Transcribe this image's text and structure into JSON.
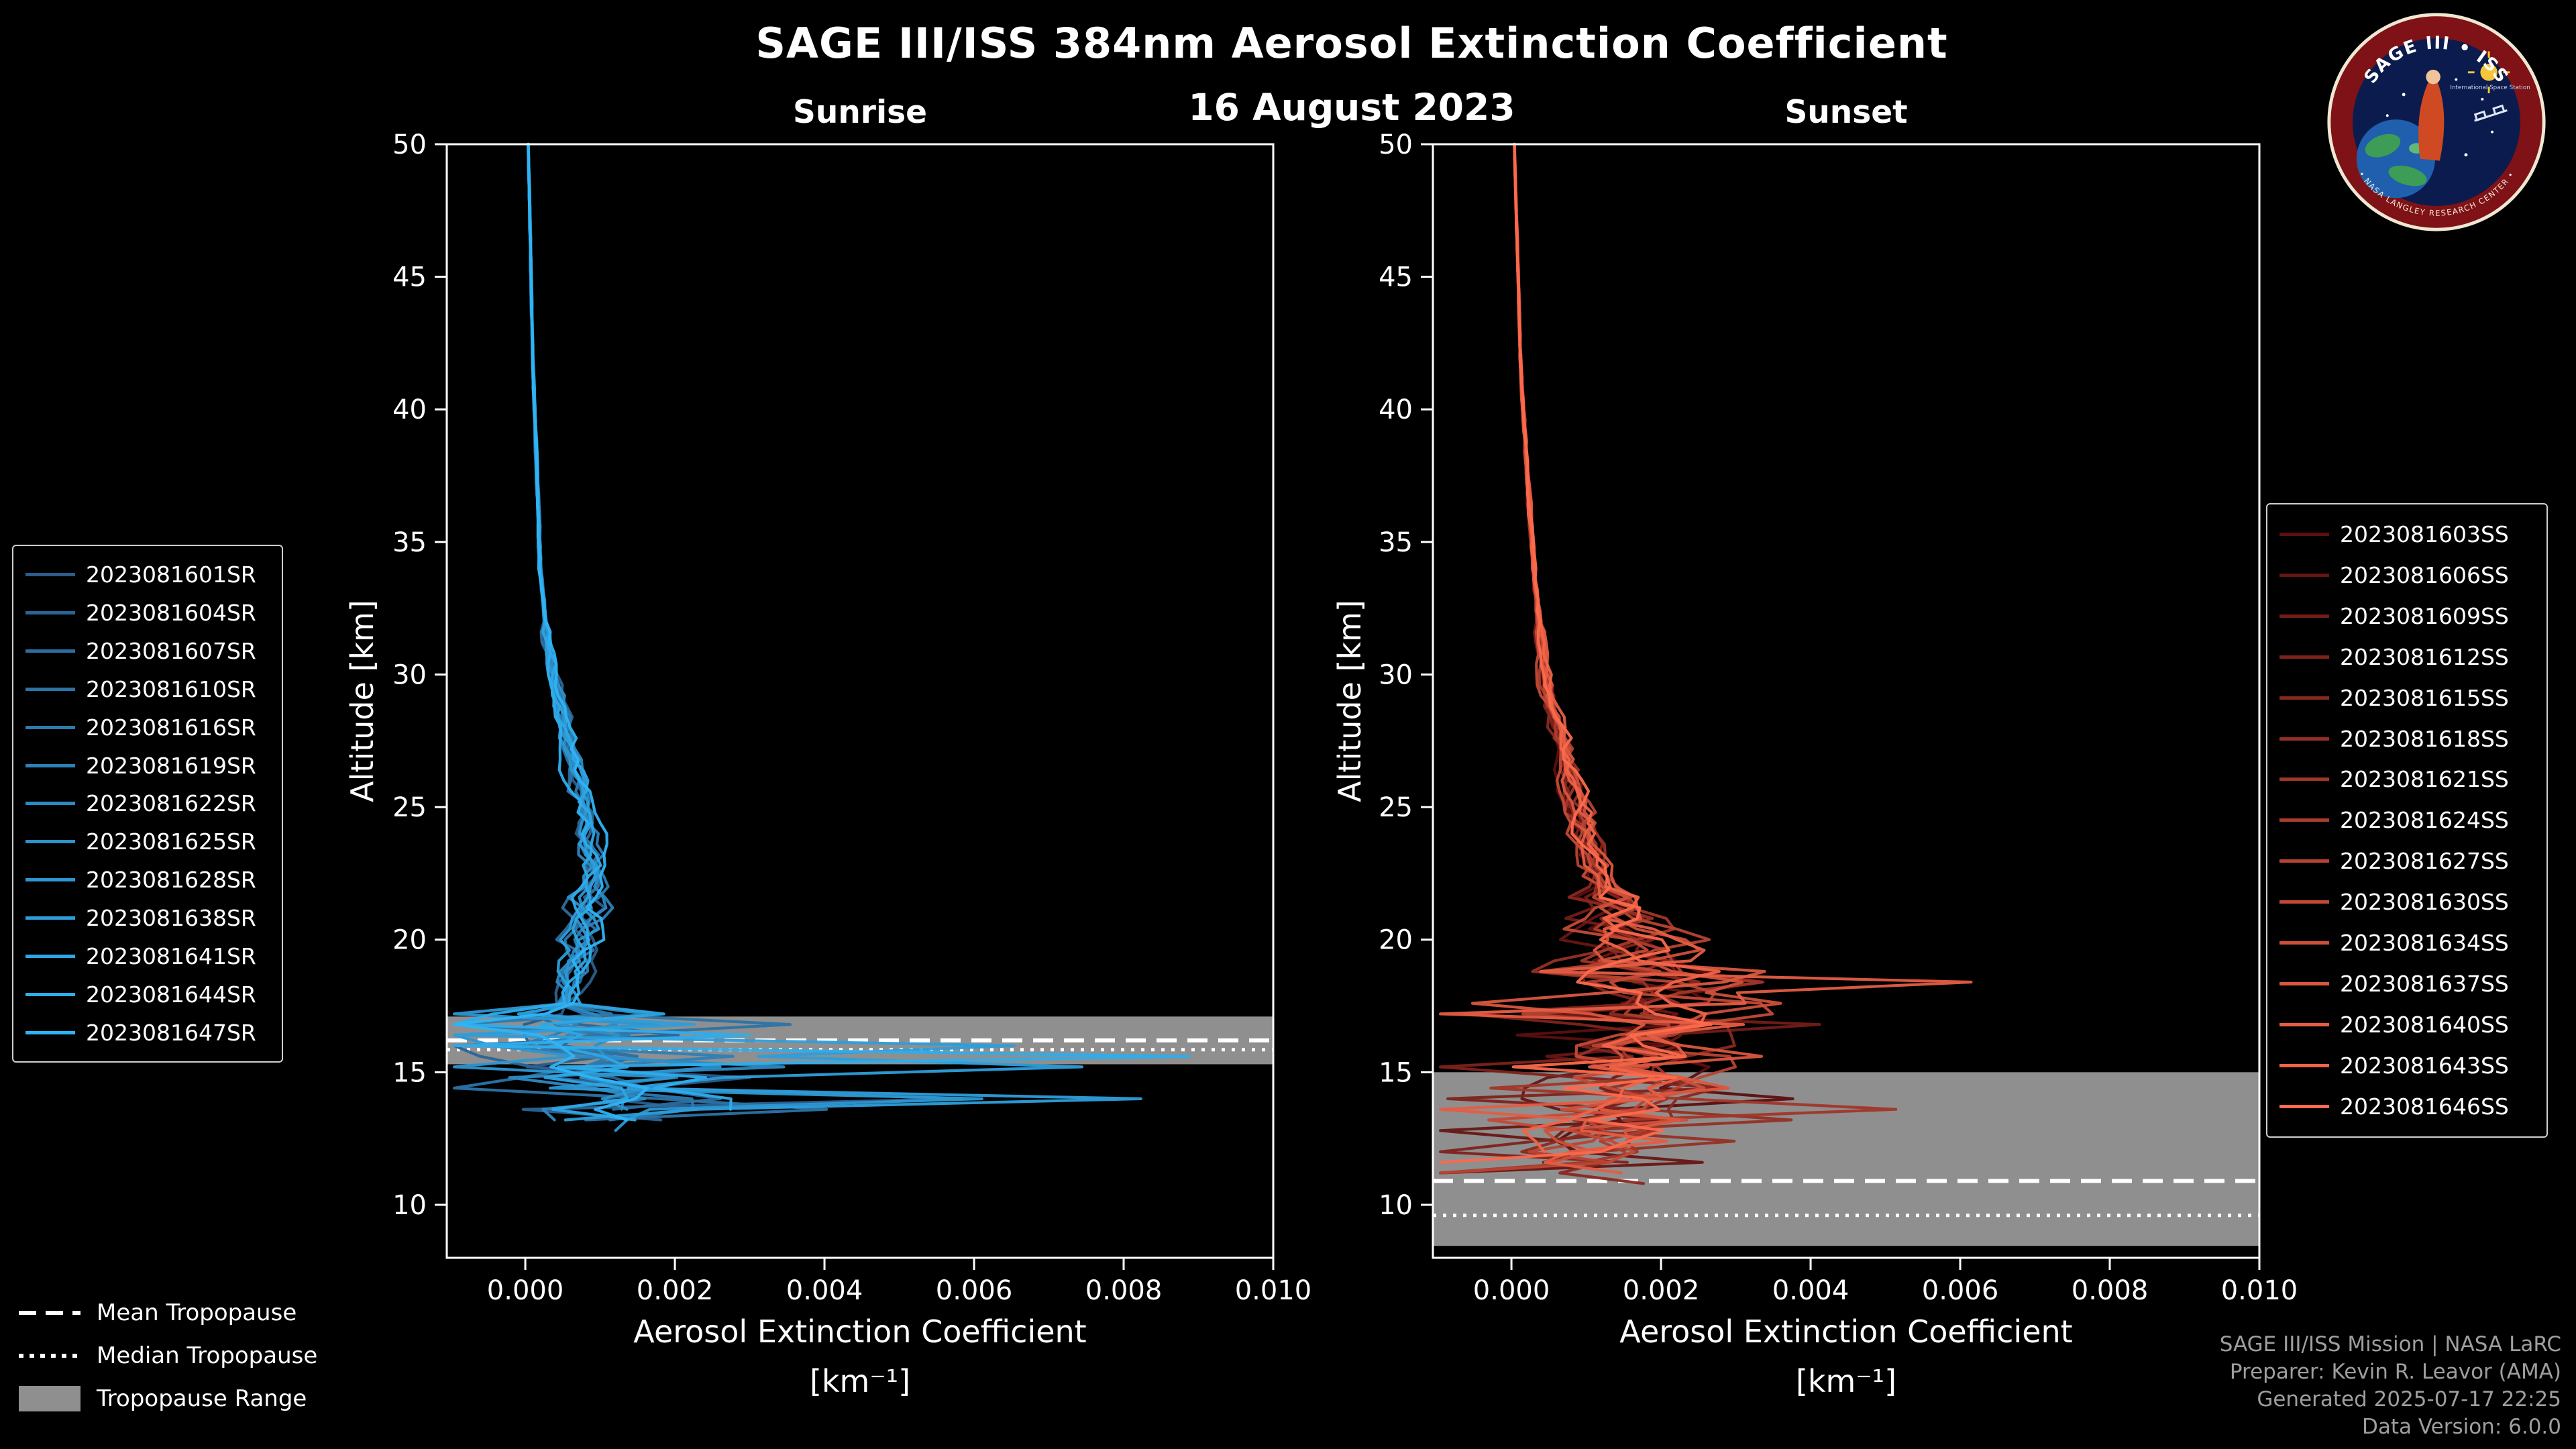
{
  "header": {
    "title": "SAGE III/ISS 384nm Aerosol Extinction Coefficient",
    "date": "16 August 2023"
  },
  "logo": {
    "name": "SAGE III • ISS",
    "side_text": "International Space Station",
    "ring_text": "• NASA LANGLEY RESEARCH CENTER •"
  },
  "tropopause_legend": {
    "mean": "Mean Tropopause",
    "median": "Median Tropopause",
    "range": "Tropopause Range"
  },
  "footer": {
    "lines": [
      "SAGE III/ISS Mission | NASA LaRC",
      "Preparer: Kevin R. Leavor (AMA)",
      "Generated 2025-07-17 22:25",
      "Data Version: 6.0.0"
    ]
  },
  "chart_data": [
    {
      "type": "line",
      "title": "Sunrise",
      "xlabel": "Aerosol Extinction Coefficient",
      "xlabel_units": "[km⁻¹]",
      "ylabel": "Altitude [km]",
      "xlim": [
        -0.00105,
        0.01
      ],
      "ylim": [
        8,
        50
      ],
      "xticks": [
        "0.000",
        "0.002",
        "0.004",
        "0.006",
        "0.008",
        "0.010"
      ],
      "yticks": [
        "10",
        "15",
        "20",
        "25",
        "30",
        "35",
        "40",
        "45",
        "50"
      ],
      "grid": false,
      "legend_position": "outside-left",
      "color_start": "#2b5d8c",
      "color_end": "#2eb4f5",
      "series": [
        "2023081601SR",
        "2023081604SR",
        "2023081607SR",
        "2023081610SR",
        "2023081616SR",
        "2023081619SR",
        "2023081622SR",
        "2023081625SR",
        "2023081628SR",
        "2023081638SR",
        "2023081641SR",
        "2023081644SR",
        "2023081647SR"
      ],
      "series_end": [
        13.4,
        13.0,
        13.6,
        13.2,
        12.9,
        13.5,
        13.1,
        13.3,
        12.8,
        13.2,
        13.0,
        13.4,
        13.1
      ],
      "series_amp": [
        0.0018,
        0.0032,
        0.0015,
        0.0022,
        0.0028,
        0.0016,
        0.0024,
        0.0014,
        0.0035,
        0.005,
        0.0018,
        0.0062,
        0.0012
      ],
      "noise_top": 17.5,
      "mid_spread": 0.3,
      "base_profile": {
        "alt": [
          50,
          46,
          42,
          38,
          34,
          31,
          29,
          27,
          25.5,
          24,
          22.5,
          21,
          20,
          19,
          18,
          17,
          16.5,
          16,
          15.5,
          15,
          14.5,
          14,
          13.5,
          13,
          12.8
        ],
        "ext": [
          4e-05,
          7e-05,
          0.0001,
          0.00015,
          0.0002,
          0.0003,
          0.00045,
          0.0006,
          0.00075,
          0.00085,
          0.0009,
          0.00085,
          0.00075,
          0.0007,
          0.0006,
          0.0005,
          0.0007,
          0.0005,
          0.0009,
          0.0007,
          0.0012,
          0.0018,
          0.0012,
          0.0009,
          0.0008
        ]
      },
      "tropopause": {
        "mean": 16.2,
        "median": 15.85,
        "range": [
          15.3,
          17.1
        ]
      }
    },
    {
      "type": "line",
      "title": "Sunset",
      "xlabel": "Aerosol Extinction Coefficient",
      "xlabel_units": "[km⁻¹]",
      "ylabel": "Altitude [km]",
      "xlim": [
        -0.00105,
        0.01
      ],
      "ylim": [
        8,
        50
      ],
      "xticks": [
        "0.000",
        "0.002",
        "0.004",
        "0.006",
        "0.008",
        "0.010"
      ],
      "yticks": [
        "10",
        "15",
        "20",
        "25",
        "30",
        "35",
        "40",
        "45",
        "50"
      ],
      "grid": false,
      "legend_position": "outside-right",
      "color_start": "#5c0f0f",
      "color_end": "#fc6a4c",
      "series": [
        "2023081603SS",
        "2023081606SS",
        "2023081609SS",
        "2023081612SS",
        "2023081615SS",
        "2023081618SS",
        "2023081621SS",
        "2023081624SS",
        "2023081627SS",
        "2023081630SS",
        "2023081634SS",
        "2023081637SS",
        "2023081640SS",
        "2023081643SS",
        "2023081646SS"
      ],
      "series_end": [
        11.6,
        11.0,
        12.2,
        11.4,
        10.8,
        11.8,
        11.2,
        12.0,
        10.9,
        11.5,
        11.3,
        11.9,
        11.1,
        11.7,
        11.4
      ],
      "series_amp": [
        0.0016,
        0.003,
        0.0014,
        0.002,
        0.0018,
        0.0015,
        0.0022,
        0.0013,
        0.0019,
        0.0016,
        0.0021,
        0.0014,
        0.0024,
        0.0017,
        0.0015
      ],
      "noise_top": 19.5,
      "mid_spread": 0.45,
      "base_profile": {
        "alt": [
          50,
          46,
          42,
          38,
          34,
          31,
          29,
          27,
          25,
          23.5,
          22,
          21,
          20,
          19.2,
          18.5,
          18,
          17.2,
          16.5,
          16,
          15.2,
          14.5,
          13.8,
          13.2,
          12.5,
          12,
          11.2,
          10.5
        ],
        "ext": [
          4e-05,
          8e-05,
          0.00012,
          0.0002,
          0.0003,
          0.0004,
          0.0005,
          0.0007,
          0.0009,
          0.001,
          0.0012,
          0.0013,
          0.0016,
          0.0019,
          0.0021,
          0.0019,
          0.0017,
          0.0016,
          0.0015,
          0.0014,
          0.0016,
          0.0019,
          0.0016,
          0.0013,
          0.0011,
          0.0009,
          0.0008
        ]
      },
      "tropopause": {
        "mean": 10.9,
        "median": 9.6,
        "range": [
          8.45,
          15.0
        ]
      }
    }
  ]
}
